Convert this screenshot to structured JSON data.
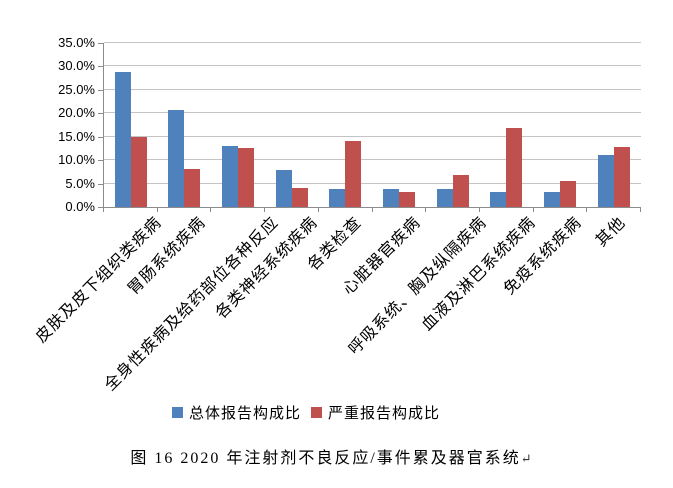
{
  "figure": {
    "caption": "图 16  2020 年注射剂不良反应/事件累及器官系统",
    "paragraph_mark": "↵"
  },
  "legend": {
    "items": [
      {
        "label": "总体报告构成比",
        "color": "#4F81BD"
      },
      {
        "label": "严重报告构成比",
        "color": "#C0504D"
      }
    ]
  },
  "chart_data": {
    "type": "bar",
    "title": "",
    "categories": [
      "皮肤及皮下组织类疾病",
      "胃肠系统疾病",
      "全身性疾病及给药部位各种反应",
      "各类神经系统疾病",
      "各类检查",
      "心脏器官疾病",
      "呼吸系统、胸及纵隔疾病",
      "血液及淋巴系统疾病",
      "免疫系统疾病",
      "其他"
    ],
    "series": [
      {
        "name": "总体报告构成比",
        "color": "#4F81BD",
        "values": [
          28.8,
          20.6,
          13.1,
          7.8,
          3.9,
          3.9,
          3.8,
          3.1,
          3.2,
          11.0
        ]
      },
      {
        "name": "严重报告构成比",
        "color": "#C0504D",
        "values": [
          15.0,
          8.1,
          12.6,
          4.1,
          14.0,
          3.2,
          6.9,
          16.8,
          5.6,
          12.8
        ]
      }
    ],
    "xlabel": "",
    "ylabel": "",
    "ylim": [
      0,
      35
    ],
    "ytick_step": 5,
    "yticks": [
      "0.0%",
      "5.0%",
      "10.0%",
      "15.0%",
      "20.0%",
      "25.0%",
      "30.0%",
      "35.0%"
    ],
    "grid": "horizontal",
    "legend_position": "bottom"
  },
  "colors": {
    "background": "#FFFFFF",
    "gridline": "#C4C4C4",
    "axis": "#8C8C8C",
    "text": "#000000"
  }
}
